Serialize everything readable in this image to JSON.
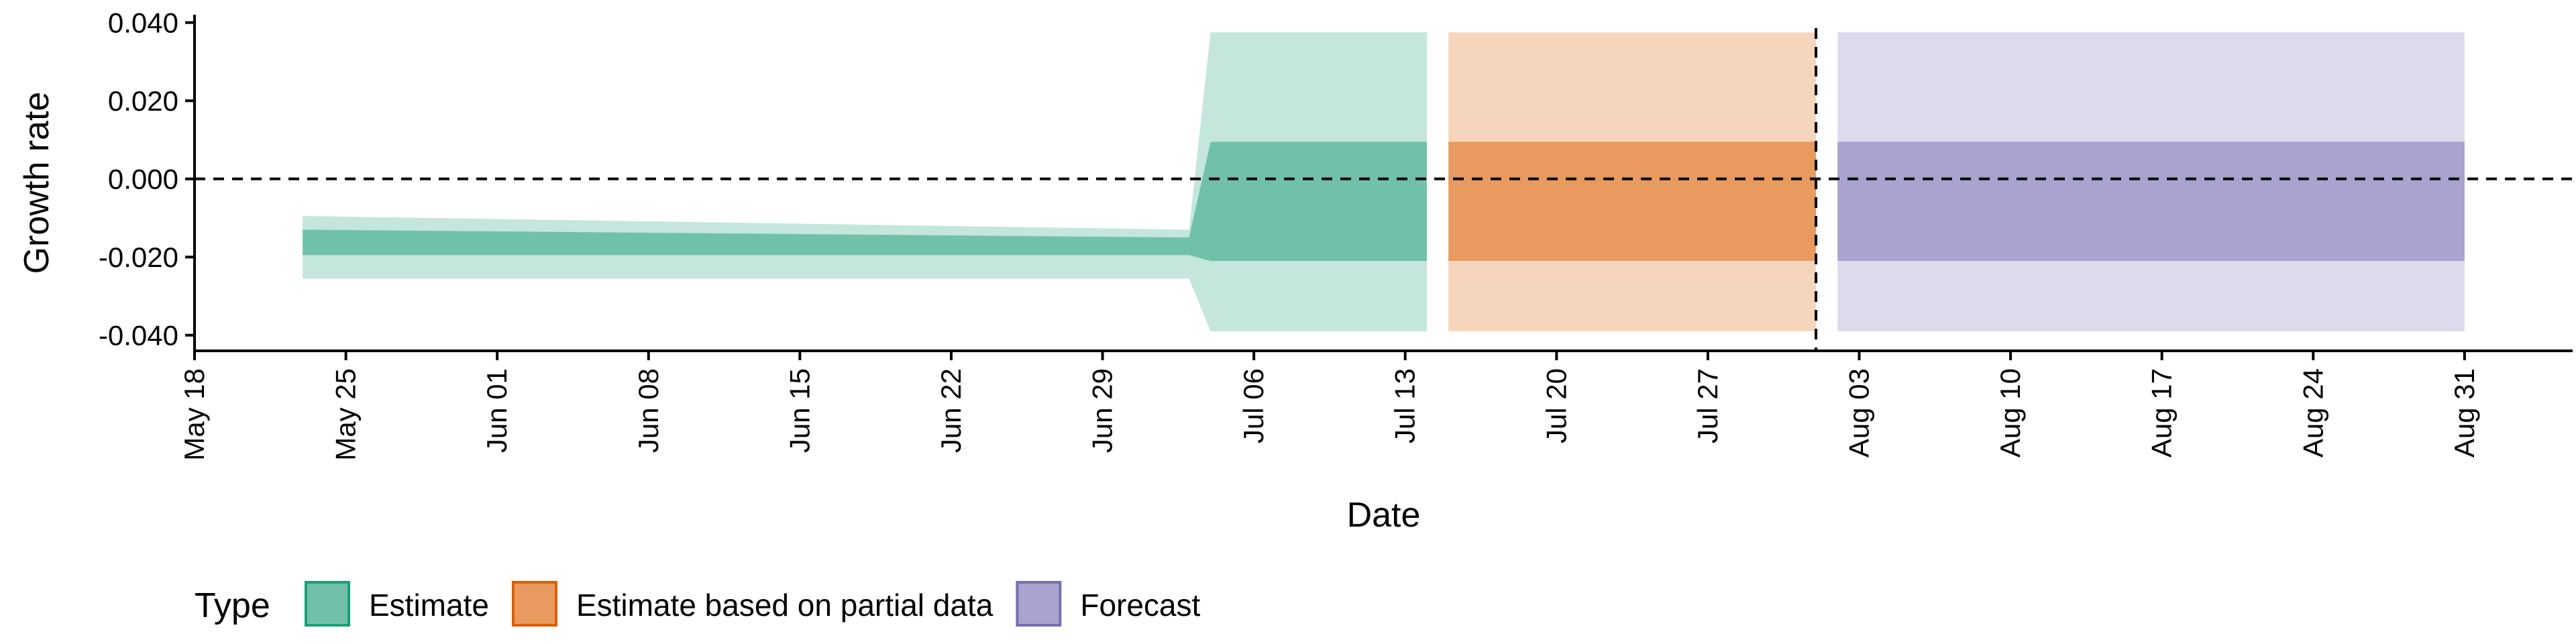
{
  "chart_data": {
    "type": "area",
    "xlabel": "Date",
    "ylabel": "Growth rate",
    "x_range": [
      "2020-05-18",
      "2020-09-05"
    ],
    "ylim": [
      -0.044,
      0.042
    ],
    "x_ticks": [
      {
        "date": "2020-05-18",
        "label": "May 18"
      },
      {
        "date": "2020-05-25",
        "label": "May 25"
      },
      {
        "date": "2020-06-01",
        "label": "Jun 01"
      },
      {
        "date": "2020-06-08",
        "label": "Jun 08"
      },
      {
        "date": "2020-06-15",
        "label": "Jun 15"
      },
      {
        "date": "2020-06-22",
        "label": "Jun 22"
      },
      {
        "date": "2020-06-29",
        "label": "Jun 29"
      },
      {
        "date": "2020-07-06",
        "label": "Jul 06"
      },
      {
        "date": "2020-07-13",
        "label": "Jul 13"
      },
      {
        "date": "2020-07-20",
        "label": "Jul 20"
      },
      {
        "date": "2020-07-27",
        "label": "Jul 27"
      },
      {
        "date": "2020-08-03",
        "label": "Aug 03"
      },
      {
        "date": "2020-08-10",
        "label": "Aug 10"
      },
      {
        "date": "2020-08-17",
        "label": "Aug 17"
      },
      {
        "date": "2020-08-24",
        "label": "Aug 24"
      },
      {
        "date": "2020-08-31",
        "label": "Aug 31"
      }
    ],
    "y_ticks": [
      {
        "value": 0.04,
        "label": "0.040"
      },
      {
        "value": 0.02,
        "label": "0.020"
      },
      {
        "value": 0.0,
        "label": "0.000"
      },
      {
        "value": -0.02,
        "label": "-0.020"
      },
      {
        "value": -0.04,
        "label": "-0.040"
      }
    ],
    "reference_lines": {
      "horizontal_y": 0.0,
      "vertical_x": "2020-08-01"
    },
    "series": [
      {
        "name": "Estimate",
        "color_outer": "#c4e6dc",
        "color_inner": "#71c1aa",
        "points": [
          {
            "x": "2020-05-23",
            "outer": [
              -0.0255,
              -0.0095
            ],
            "inner": [
              -0.0195,
              -0.013
            ]
          },
          {
            "x": "2020-07-03",
            "outer": [
              -0.0255,
              -0.013
            ],
            "inner": [
              -0.0195,
              -0.015
            ]
          },
          {
            "x": "2020-07-04",
            "outer": [
              -0.039,
              0.0375
            ],
            "inner": [
              -0.021,
              0.0095
            ]
          },
          {
            "x": "2020-07-14",
            "outer": [
              -0.039,
              0.0375
            ],
            "inner": [
              -0.021,
              0.0095
            ]
          }
        ]
      },
      {
        "name": "Estimate based on partial data",
        "color_outer": "#f5d6bd",
        "color_inner": "#e89a5f",
        "points": [
          {
            "x": "2020-07-15",
            "outer": [
              -0.039,
              0.0375
            ],
            "inner": [
              -0.021,
              0.0095
            ]
          },
          {
            "x": "2020-08-01",
            "outer": [
              -0.039,
              0.0375
            ],
            "inner": [
              -0.021,
              0.0095
            ]
          }
        ]
      },
      {
        "name": "Forecast",
        "color_outer": "#dcdaeb",
        "color_inner": "#a8a3cf",
        "points": [
          {
            "x": "2020-08-02",
            "outer": [
              -0.039,
              0.0375
            ],
            "inner": [
              -0.021,
              0.0095
            ]
          },
          {
            "x": "2020-08-31",
            "outer": [
              -0.039,
              0.0375
            ],
            "inner": [
              -0.021,
              0.0095
            ]
          }
        ]
      }
    ],
    "legend": {
      "title": "Type",
      "position": "bottom-left",
      "items": [
        {
          "label": "Estimate",
          "fill": "#71c1aa",
          "border": "#1b9e77"
        },
        {
          "label": "Estimate based on partial data",
          "fill": "#e89a5f",
          "border": "#d95f02"
        },
        {
          "label": "Forecast",
          "fill": "#a8a3cf",
          "border": "#7570b3"
        }
      ]
    }
  }
}
